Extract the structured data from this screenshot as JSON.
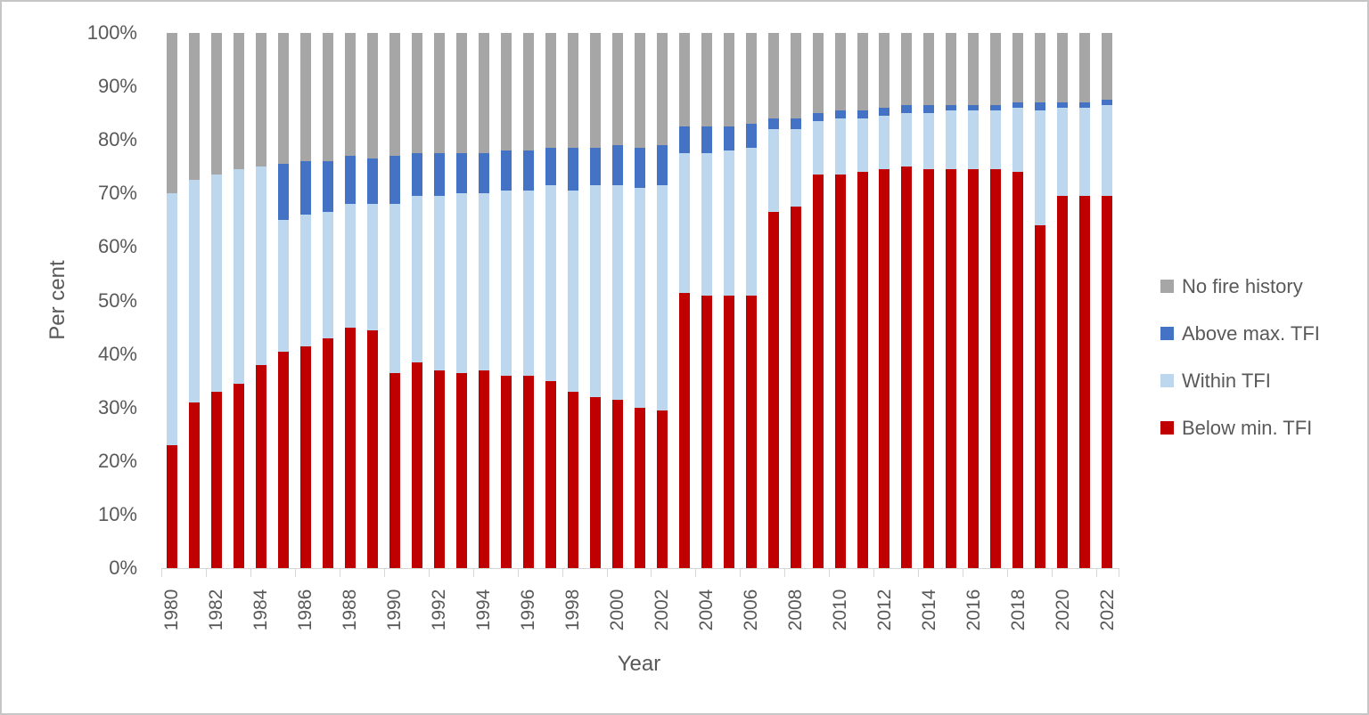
{
  "chart_data": {
    "type": "bar",
    "stacked": true,
    "percent_stacked": true,
    "title": "",
    "xlabel": "Year",
    "ylabel": "Per cent",
    "ylim": [
      0,
      100
    ],
    "grid": false,
    "y_tick_labels": [
      "0%",
      "10%",
      "20%",
      "30%",
      "40%",
      "50%",
      "60%",
      "70%",
      "80%",
      "90%",
      "100%"
    ],
    "x_label_interval": 2,
    "categories": [
      1980,
      1981,
      1982,
      1983,
      1984,
      1985,
      1986,
      1987,
      1988,
      1989,
      1990,
      1991,
      1992,
      1993,
      1994,
      1995,
      1996,
      1997,
      1998,
      1999,
      2000,
      2001,
      2002,
      2003,
      2004,
      2005,
      2006,
      2007,
      2008,
      2009,
      2010,
      2011,
      2012,
      2013,
      2014,
      2015,
      2016,
      2017,
      2018,
      2019,
      2020,
      2021,
      2022
    ],
    "series": [
      {
        "name": "Below min. TFI",
        "color": "#c00000",
        "values": [
          23,
          31,
          33,
          34.5,
          38,
          40.5,
          41.5,
          43,
          45,
          44.5,
          36.5,
          38.5,
          37,
          36.5,
          37,
          36,
          36,
          35,
          33,
          32,
          31.5,
          30,
          29.5,
          51.5,
          51,
          51,
          51,
          66.5,
          67.5,
          73.5,
          73.5,
          74,
          74.5,
          75,
          74.5,
          74.5,
          74.5,
          74.5,
          74,
          64,
          69.5,
          69.5,
          69.5
        ]
      },
      {
        "name": "Within TFI",
        "color": "#bdd7ee",
        "values": [
          47,
          41.5,
          40.5,
          40,
          37,
          24.5,
          24.5,
          23.5,
          23,
          23.5,
          31.5,
          31,
          32.5,
          33.5,
          33,
          34.5,
          34.5,
          36.5,
          37.5,
          39.5,
          40,
          41,
          42,
          26,
          26.5,
          27,
          27.5,
          15.5,
          14.5,
          10,
          10.5,
          10,
          10,
          10,
          10.5,
          11,
          11,
          11,
          12,
          21.5,
          16.5,
          16.5,
          17
        ]
      },
      {
        "name": "Above max. TFI",
        "color": "#4472c4",
        "values": [
          0,
          0,
          0,
          0,
          0,
          10.5,
          10,
          9.5,
          9,
          8.5,
          9,
          8,
          8,
          7.5,
          7.5,
          7.5,
          7.5,
          7,
          8,
          7,
          7.5,
          7.5,
          7.5,
          5,
          5,
          4.5,
          4.5,
          2,
          2,
          1.5,
          1.5,
          1.5,
          1.5,
          1.5,
          1.5,
          1,
          1,
          1,
          1,
          1.5,
          1,
          1,
          1
        ]
      },
      {
        "name": "No fire history",
        "color": "#a6a6a6",
        "values": [
          30,
          27.5,
          26.5,
          25.5,
          25,
          24.5,
          24,
          24,
          23,
          23.5,
          23,
          22.5,
          22.5,
          22.5,
          22.5,
          22,
          22,
          21.5,
          21.5,
          21.5,
          21,
          21.5,
          21,
          17.5,
          17.5,
          17.5,
          17,
          16,
          16,
          15,
          14.5,
          14.5,
          14,
          13.5,
          13.5,
          13.5,
          13.5,
          13.5,
          13,
          13,
          13,
          13,
          12.5
        ]
      }
    ],
    "legend": {
      "position": "right",
      "order_top_to_bottom": [
        "No fire history",
        "Above max. TFI",
        "Within TFI",
        "Below min. TFI"
      ]
    },
    "text_color": "#595959",
    "axis_line_color": "#d6d6d6"
  }
}
